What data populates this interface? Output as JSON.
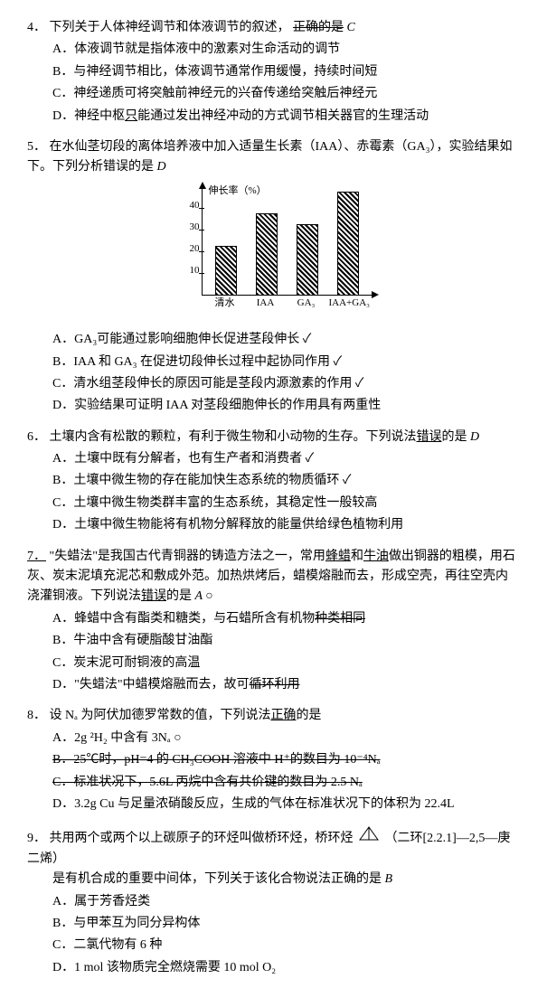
{
  "q4": {
    "num": "4．",
    "stem_a": "下列关于人体神经调节和体液调节的叙述，",
    "stem_strike": "正确的是",
    "ann": "C",
    "options": {
      "A": "A．体液调节就是指体液中的激素对生命活动的调节",
      "B": "B．与神经调节相比，体液调节通常作用缓慢，持续时间短",
      "C": "C．神经递质可将突触前神经元的兴奋传递给突触后神经元",
      "D_pre": "D．神经中枢",
      "D_u": "只",
      "D_post": "能通过发出神经冲动的方式调节相关器官的生理活动"
    }
  },
  "q5": {
    "num": "5．",
    "stem": "在水仙茎切段的离体培养液中加入适量生长素（IAA）、赤霉素（GA₃），实验结果如下。下列分析错误的是",
    "ann": "D",
    "chart": {
      "ylabel": "伸长率（%）",
      "yticks": [
        "10",
        "20",
        "30",
        "40"
      ],
      "categories": [
        "清水",
        "IAA",
        "GA₃",
        "IAA+GA₃"
      ],
      "values": [
        22,
        37,
        32,
        47
      ],
      "max": 50
    },
    "options": {
      "A": "A．GA₃可能通过影响细胞伸长促进茎段伸长 ✓",
      "B": "B．IAA 和 GA₃ 在促进切段伸长过程中起协同作用 ✓",
      "C": "C．清水组茎段伸长的原因可能是茎段内源激素的作用 ✓",
      "D": "D．实验结果可证明 IAA 对茎段细胞伸长的作用具有两重性"
    }
  },
  "q6": {
    "num": "6．",
    "stem": "土壤内含有松散的颗粒，有利于微生物和小动物的生存。下列说法",
    "stem_u": "错误",
    "stem_post": "的是",
    "ann": "D",
    "options": {
      "A": "A．土壤中既有分解者，也有生产者和消费者 ✓",
      "B": "B．土壤中微生物的存在能加快生态系统的物质循环 ✓",
      "C": "C．土壤中微生物类群丰富的生态系统，其稳定性一般较高",
      "D": "D．土壤中微生物能将有机物分解释放的能量供给绿色植物利用"
    }
  },
  "q7": {
    "num_u": "7．",
    "stem1": "\"失蜡法\"是我国古代青铜器的铸造方法之一，常用",
    "stem_u1": "蜂蜡",
    "stem2": "和",
    "stem_u2": "牛油",
    "stem3": "做出铜器的粗模，用石灰、炭末泥填充泥芯和敷成外范。加热烘烤后，蜡模熔融而去，形成空壳，再往空壳内浇灌铜液。下列说法",
    "stem_u3": "错误",
    "stem4": "的是",
    "ann": "A ○",
    "options": {
      "A_pre": "A．蜂蜡中含有酯类和糖类，与石蜡所含有机物",
      "A_strike": "种类相同",
      "B": "B．牛油中含有硬脂酸甘油酯",
      "C": "C．炭末泥可耐铜液的高温",
      "D_pre": "D．\"失蜡法\"中蜡模熔融而去，故可",
      "D_strike": "循环利用"
    }
  },
  "q8": {
    "num": "8．",
    "stem": "设 Nₐ 为阿伏加德罗常数的值，下列说法",
    "stem_u": "正确",
    "stem_post": "的是",
    "options": {
      "A": "A．2g ²H₂ 中含有 3Nₐ ○",
      "B_strike": "B．25℃时，pH=4 的 CH₃COOH 溶液中 H⁺的数目为 10⁻⁴Nₐ",
      "C_strike": "C．标准状况下，5.6L 丙烷中含有共价键的数目为 2.5 Nₐ",
      "D": "D．3.2g Cu 与足量浓硝酸反应，生成的气体在标准状况下的体积为 22.4L"
    }
  },
  "q9": {
    "num": "9．",
    "stem1": "共用两个或两个以上碳原子的环烃叫做桥环烃，桥环烃",
    "stem2": "（二环[2.2.1]—2,5—庚二烯）",
    "stem3": "是有机合成的重要中间体，下列关于该化合物说法正确的是",
    "ann": "B",
    "options": {
      "A": "A．属于芳香烃类",
      "B": "B．与甲苯互为同分异构体",
      "C": "C．二氯代物有 6 种",
      "D": "D．1 mol 该物质完全燃烧需要 10 mol O₂"
    }
  }
}
